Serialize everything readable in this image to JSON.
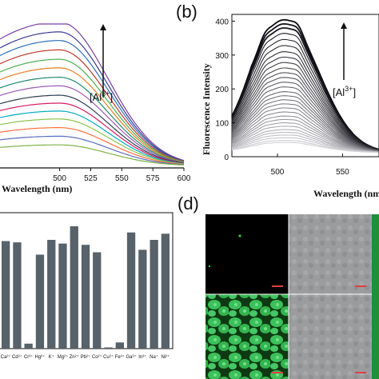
{
  "panels": {
    "b_label": "(b)",
    "d_label": "(d)"
  },
  "panel_a": {
    "xlabel": "Wavelength (nm)",
    "annotation": {
      "text": "[Al",
      "sup": "3+",
      "close": "]"
    }
  },
  "panel_b": {
    "xlabel": "Wavelength (nm",
    "ylabel": "Fluorescence Intensity",
    "annotation": {
      "text": "[Al",
      "sup": "3+",
      "close": "]"
    }
  },
  "chart_data": [
    {
      "panel": "a",
      "type": "line",
      "xlabel": "Wavelength (nm)",
      "xlim": [
        452,
        600
      ],
      "xticks": [
        500,
        525,
        550,
        575,
        600
      ],
      "curve_count": 15,
      "peak_x": 500,
      "scale_max": 400,
      "series": [
        {
          "values_at_peak": 400,
          "color": "#7a3fa0"
        },
        {
          "values_at_peak": 372,
          "color": "#3b3b8f"
        },
        {
          "values_at_peak": 348,
          "color": "#2e6fb8"
        },
        {
          "values_at_peak": 322,
          "color": "#c0392b"
        },
        {
          "values_at_peak": 296,
          "color": "#4caf50"
        },
        {
          "values_at_peak": 272,
          "color": "#e67e22"
        },
        {
          "values_at_peak": 246,
          "color": "#1f8a70"
        },
        {
          "values_at_peak": 222,
          "color": "#9b59b6"
        },
        {
          "values_at_peak": 196,
          "color": "#2c3e50"
        },
        {
          "values_at_peak": 174,
          "color": "#d81b60"
        },
        {
          "values_at_peak": 152,
          "color": "#00acc1"
        },
        {
          "values_at_peak": 130,
          "color": "#8bc34a"
        },
        {
          "values_at_peak": 106,
          "color": "#ff7043"
        },
        {
          "values_at_peak": 82,
          "color": "#5c6bc0"
        },
        {
          "values_at_peak": 58,
          "color": "#7cb342"
        }
      ]
    },
    {
      "panel": "b",
      "type": "line",
      "xlabel": "Wavelength (nm",
      "ylabel": "Fluorescence Intensity",
      "xlim": [
        465,
        578
      ],
      "ylim": [
        0,
        420
      ],
      "xticks": [
        500,
        550
      ],
      "yticks": [
        0,
        100,
        200,
        300,
        400
      ],
      "peak_x": [
        490,
        516
      ],
      "series_peaks": [
        392,
        380,
        368,
        352,
        334,
        316,
        298,
        282,
        266,
        250,
        236,
        222,
        208,
        194,
        180,
        168,
        156,
        144,
        132,
        120,
        108,
        98,
        88,
        78,
        68,
        60,
        52,
        44,
        36,
        30
      ]
    },
    {
      "panel": "c",
      "type": "bar",
      "categories": [
        "Ca²⁺",
        "Cd²⁺",
        "Cr³⁺",
        "Hg²⁺",
        "K⁺",
        "Mg²⁺",
        "Zn²⁺",
        "Pb²⁺",
        "Co²⁺",
        "Cu²⁺",
        "Fe³⁺",
        "Ga³⁺",
        "In³⁺",
        "Na⁺",
        "Ni²⁺"
      ],
      "values": [
        87,
        86,
        4,
        76,
        88,
        85,
        99,
        84,
        78,
        1,
        5,
        94,
        80,
        88,
        93
      ],
      "ylim": [
        0,
        110
      ],
      "bar_color": "#57626a"
    }
  ],
  "microscopy": {
    "scale_bar_color": "#e04040"
  }
}
